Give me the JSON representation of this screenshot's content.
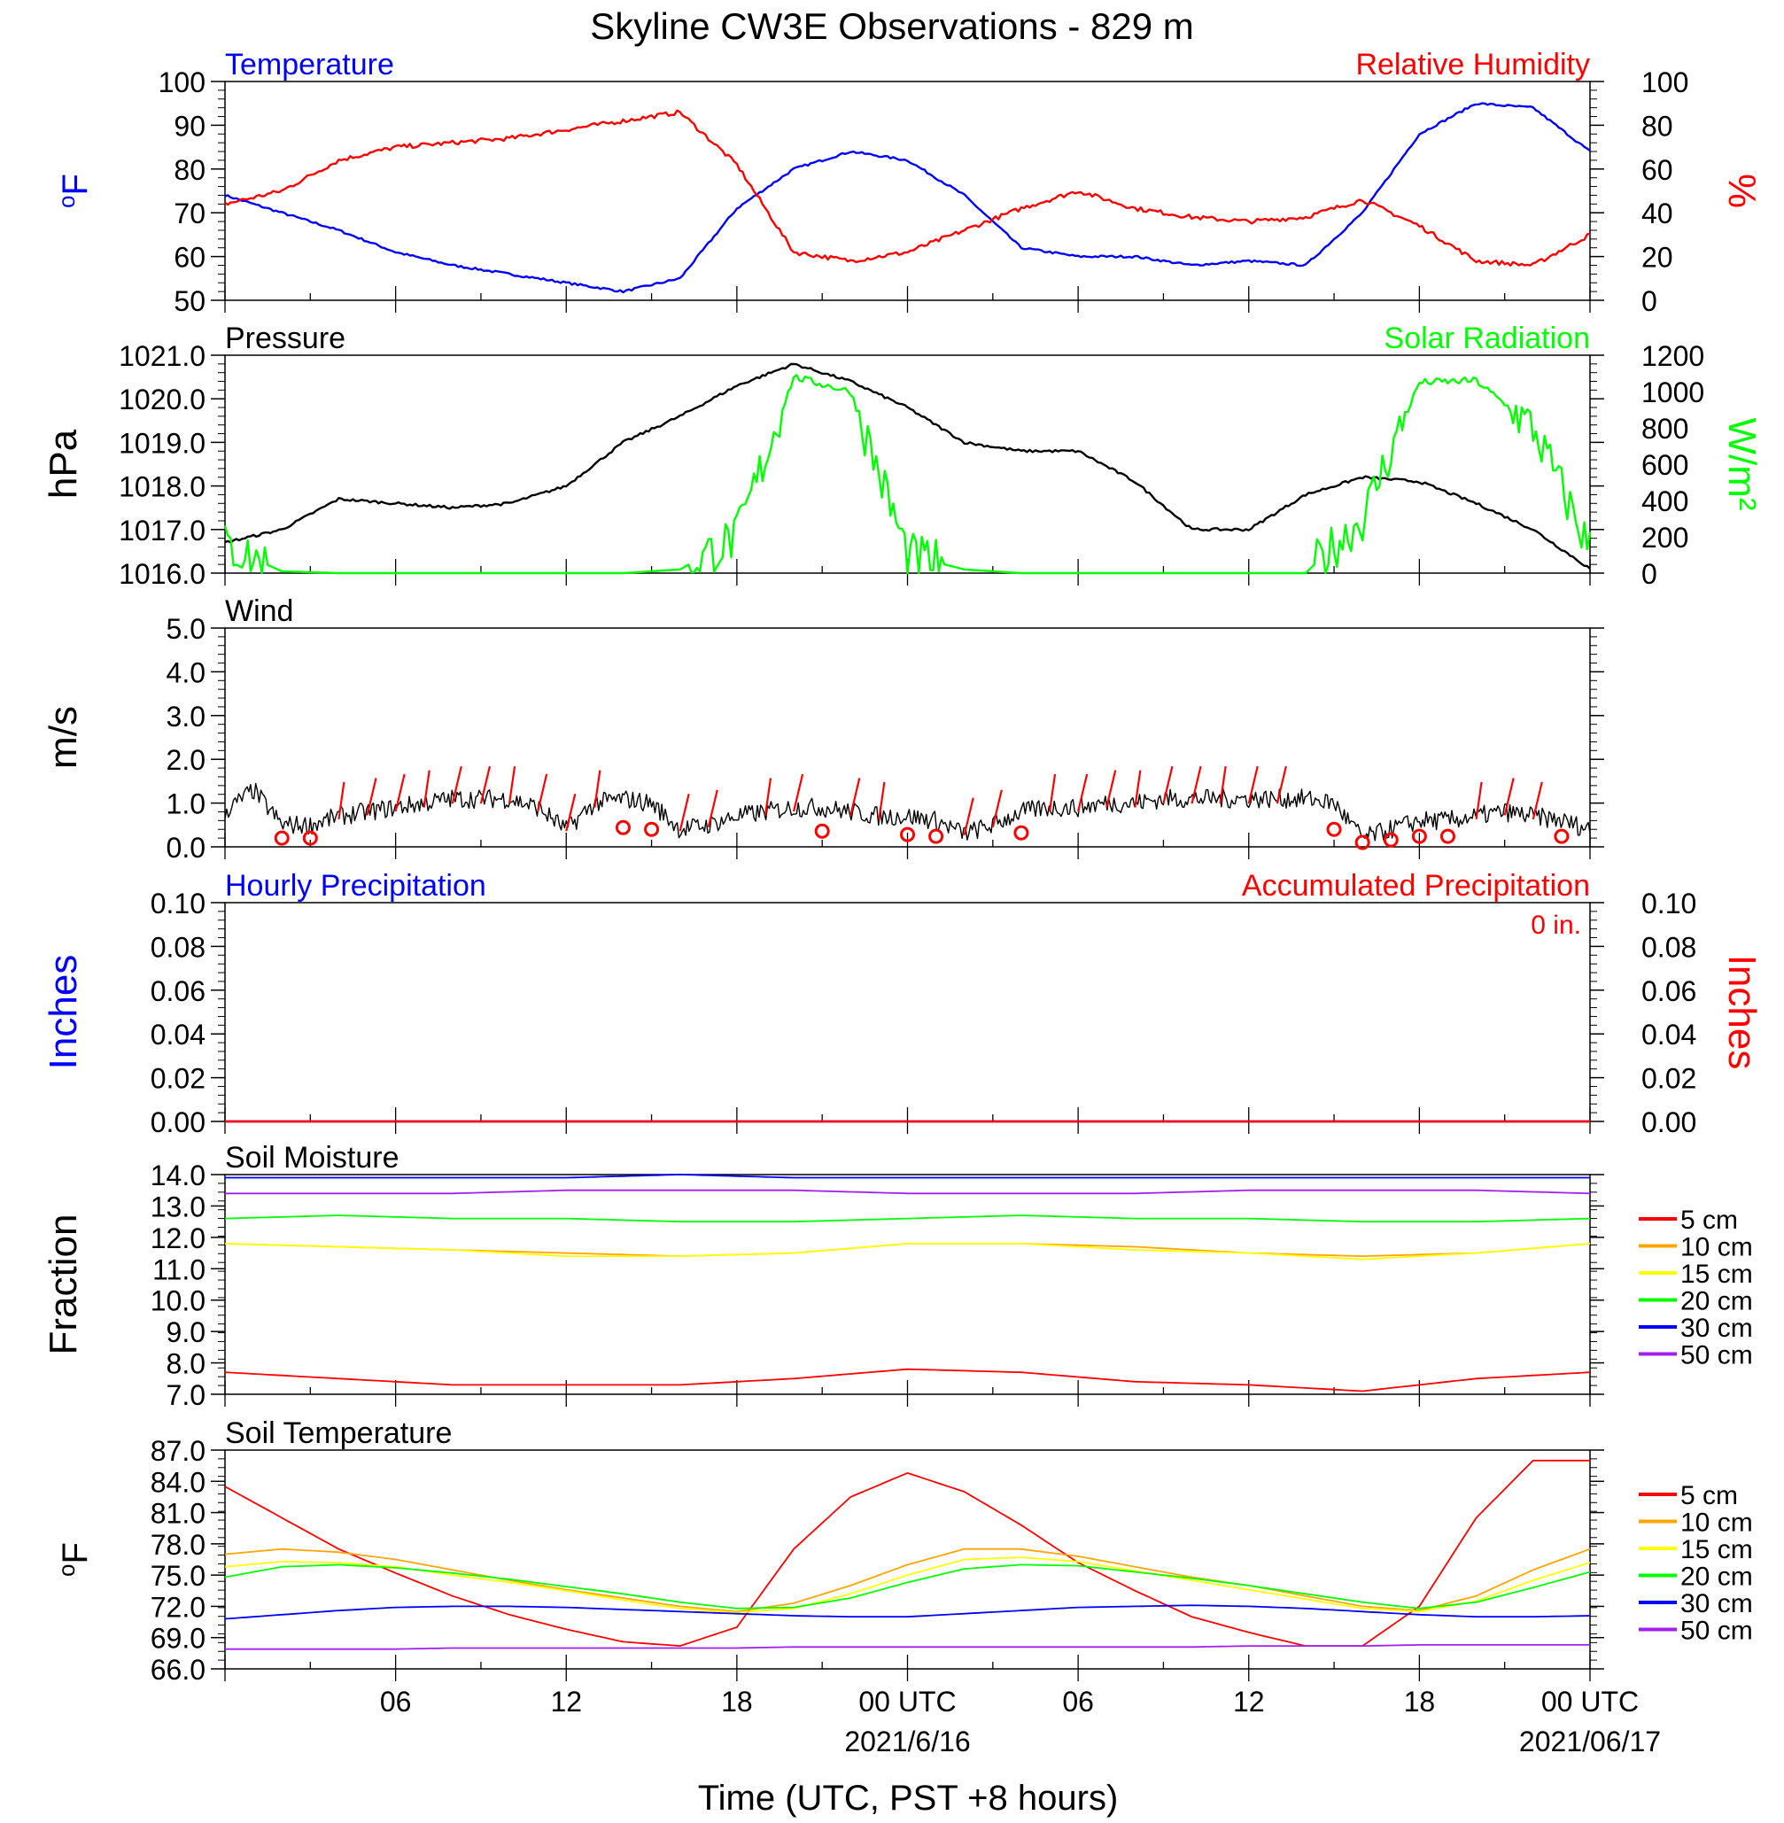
{
  "title": "Skyline CW3E Observations - 829 m",
  "xlabel": "Time (UTC, PST +8 hours)",
  "x_ticks": [
    "06",
    "12",
    "18",
    "00 UTC",
    "06",
    "12",
    "18",
    "00 UTC"
  ],
  "x_dates": [
    "2021/6/16",
    "2021/06/17"
  ],
  "colors": {
    "temperature": "#0000ff",
    "humidity": "#ff0000",
    "pressure": "#000000",
    "solar": "#00ff00",
    "5cm": "#ff0000",
    "10cm": "#ffa500",
    "15cm": "#ffff00",
    "20cm": "#00ff00",
    "30cm": "#0000ff",
    "50cm": "#a020f0"
  },
  "chart_data": [
    {
      "type": "line",
      "panel": "temperature-humidity",
      "left_title": "Temperature",
      "right_title": "Relative Humidity",
      "ylabel_left": "oF",
      "ylabel_right": "%",
      "ylim_left": [
        50,
        100
      ],
      "ylim_right": [
        0,
        100
      ],
      "yticks_left": [
        "50",
        "60",
        "70",
        "80",
        "90",
        "100"
      ],
      "yticks_right": [
        "0",
        "20",
        "40",
        "60",
        "80",
        "100"
      ],
      "x_hours": [
        0,
        2,
        4,
        6,
        8,
        10,
        12,
        14,
        16,
        18,
        20,
        22,
        24,
        26,
        28,
        30,
        32,
        34,
        36,
        38,
        40,
        42,
        44,
        46,
        48
      ],
      "series": [
        {
          "name": "Temperature",
          "axis": "left",
          "values": [
            74,
            70,
            66,
            61,
            58,
            56,
            54,
            52,
            55,
            71,
            80,
            84,
            82,
            74,
            62,
            60,
            60,
            58,
            59,
            58,
            70,
            88,
            95,
            94,
            84
          ]
        },
        {
          "name": "Relative Humidity",
          "axis": "right",
          "values": [
            44,
            50,
            64,
            70,
            72,
            74,
            78,
            82,
            86,
            62,
            22,
            18,
            22,
            32,
            42,
            50,
            42,
            38,
            36,
            38,
            46,
            34,
            18,
            16,
            30
          ]
        }
      ]
    },
    {
      "type": "line",
      "panel": "pressure-solar",
      "left_title": "Pressure",
      "right_title": "Solar Radiation",
      "ylabel_left": "hPa",
      "ylabel_right": "W/m²",
      "ylim_left": [
        1016.0,
        1021.0
      ],
      "ylim_right": [
        0,
        1200
      ],
      "yticks_left": [
        "1016.0",
        "1017.0",
        "1018.0",
        "1019.0",
        "1020.0",
        "1021.0"
      ],
      "yticks_right": [
        "0",
        "200",
        "400",
        "600",
        "800",
        "1000",
        "1200"
      ],
      "x_hours": [
        0,
        2,
        4,
        6,
        8,
        10,
        12,
        14,
        16,
        18,
        20,
        22,
        24,
        26,
        28,
        30,
        32,
        34,
        36,
        38,
        40,
        42,
        44,
        46,
        48
      ],
      "series": [
        {
          "name": "Pressure",
          "axis": "left",
          "values": [
            1016.7,
            1017.0,
            1017.7,
            1017.6,
            1017.5,
            1017.6,
            1018.0,
            1019.0,
            1019.6,
            1020.3,
            1020.8,
            1020.4,
            1019.8,
            1019.0,
            1018.8,
            1018.8,
            1018.1,
            1017.0,
            1017.0,
            1017.8,
            1018.2,
            1018.1,
            1017.6,
            1017.0,
            1016.1
          ]
        },
        {
          "name": "Solar Radiation",
          "axis": "right",
          "values": [
            150,
            10,
            0,
            0,
            0,
            0,
            0,
            0,
            20,
            200,
            1080,
            1000,
            100,
            20,
            0,
            0,
            0,
            0,
            0,
            0,
            300,
            1050,
            1060,
            800,
            130
          ]
        }
      ]
    },
    {
      "type": "line",
      "panel": "wind",
      "left_title": "Wind",
      "ylabel_left": "m/s",
      "ylim_left": [
        0.0,
        5.0
      ],
      "yticks_left": [
        "0.0",
        "1.0",
        "2.0",
        "3.0",
        "4.0",
        "5.0"
      ],
      "x_hours": [
        0,
        1,
        2,
        3,
        4,
        5,
        6,
        7,
        8,
        9,
        10,
        11,
        12,
        13,
        14,
        15,
        16,
        17,
        18,
        19,
        20,
        21,
        22,
        23,
        24,
        25,
        26,
        27,
        28,
        29,
        30,
        31,
        32,
        33,
        34,
        35,
        36,
        37,
        38,
        39,
        40,
        41,
        42,
        43,
        44,
        45,
        46,
        47,
        48
      ],
      "series": [
        {
          "name": "Wind Speed",
          "values": [
            0.8,
            1.3,
            0.5,
            0.5,
            0.7,
            0.8,
            0.9,
            1.0,
            1.1,
            1.1,
            1.1,
            0.9,
            0.4,
            1.0,
            1.1,
            1.0,
            0.4,
            0.5,
            0.7,
            0.8,
            0.9,
            0.9,
            0.8,
            0.7,
            0.7,
            0.6,
            0.3,
            0.5,
            0.8,
            0.9,
            0.9,
            1.0,
            1.0,
            1.1,
            1.1,
            1.1,
            1.1,
            1.1,
            1.1,
            1.0,
            0.2,
            0.4,
            0.6,
            0.6,
            0.7,
            0.8,
            0.7,
            0.6,
            0.4
          ]
        }
      ],
      "calm_hours": [
        2,
        3,
        14,
        15,
        21,
        24,
        25,
        28,
        39,
        40,
        41,
        42,
        43,
        47
      ],
      "barb_hours": [
        4,
        5,
        6,
        7,
        8,
        9,
        10,
        11,
        12,
        13,
        16,
        17,
        19,
        20,
        22,
        23,
        26,
        27,
        29,
        30,
        31,
        32,
        33,
        34,
        35,
        36,
        37,
        44,
        45,
        46
      ]
    },
    {
      "type": "line",
      "panel": "precipitation",
      "left_title": "Hourly Precipitation",
      "right_title": "Accumulated Precipitation",
      "annotation": "0 in.",
      "ylabel_left": "Inches",
      "ylabel_right": "Inches",
      "ylim_left": [
        0.0,
        0.1
      ],
      "ylim_right": [
        0.0,
        0.1
      ],
      "yticks_left": [
        "0.00",
        "0.02",
        "0.04",
        "0.06",
        "0.08",
        "0.10"
      ],
      "yticks_right": [
        "0.00",
        "0.02",
        "0.04",
        "0.06",
        "0.08",
        "0.10"
      ],
      "x_hours": [
        0,
        48
      ],
      "series": [
        {
          "name": "Hourly Precipitation",
          "axis": "left",
          "values": [
            0,
            0
          ]
        },
        {
          "name": "Accumulated Precipitation",
          "axis": "right",
          "values": [
            0,
            0
          ]
        }
      ]
    },
    {
      "type": "line",
      "panel": "soil-moisture",
      "left_title": "Soil Moisture",
      "ylabel_left": "Fraction",
      "ylim_left": [
        7.0,
        14.0
      ],
      "yticks_left": [
        "7.0",
        "8.0",
        "9.0",
        "10.0",
        "11.0",
        "12.0",
        "13.0",
        "14.0"
      ],
      "legend": [
        "5 cm",
        "10 cm",
        "15 cm",
        "20 cm",
        "30 cm",
        "50 cm"
      ],
      "x_hours": [
        0,
        4,
        8,
        12,
        16,
        20,
        24,
        28,
        32,
        36,
        40,
        44,
        48
      ],
      "series": [
        {
          "name": "5 cm",
          "values": [
            7.7,
            7.5,
            7.3,
            7.3,
            7.3,
            7.5,
            7.8,
            7.7,
            7.4,
            7.3,
            7.1,
            7.5,
            7.7
          ]
        },
        {
          "name": "10 cm",
          "values": [
            11.8,
            11.7,
            11.6,
            11.5,
            11.4,
            11.5,
            11.8,
            11.8,
            11.7,
            11.5,
            11.4,
            11.5,
            11.8
          ]
        },
        {
          "name": "15 cm",
          "values": [
            11.8,
            11.7,
            11.6,
            11.4,
            11.4,
            11.5,
            11.8,
            11.8,
            11.6,
            11.5,
            11.3,
            11.5,
            11.8
          ]
        },
        {
          "name": "20 cm",
          "values": [
            12.6,
            12.7,
            12.6,
            12.6,
            12.5,
            12.5,
            12.6,
            12.7,
            12.6,
            12.6,
            12.5,
            12.5,
            12.6
          ]
        },
        {
          "name": "30 cm",
          "values": [
            13.9,
            13.9,
            13.9,
            13.9,
            14.0,
            13.9,
            13.9,
            13.9,
            13.9,
            13.9,
            13.9,
            13.9,
            13.9
          ]
        },
        {
          "name": "50 cm",
          "values": [
            13.4,
            13.4,
            13.4,
            13.5,
            13.5,
            13.5,
            13.4,
            13.4,
            13.4,
            13.5,
            13.5,
            13.5,
            13.4
          ]
        }
      ]
    },
    {
      "type": "line",
      "panel": "soil-temperature",
      "left_title": "Soil Temperature",
      "ylabel_left": "oF",
      "ylim_left": [
        66.0,
        87.0
      ],
      "yticks_left": [
        "66.0",
        "69.0",
        "72.0",
        "75.0",
        "78.0",
        "81.0",
        "84.0",
        "87.0"
      ],
      "legend": [
        "5 cm",
        "10 cm",
        "15 cm",
        "20 cm",
        "30 cm",
        "50 cm"
      ],
      "x_hours": [
        0,
        2,
        4,
        6,
        8,
        10,
        12,
        14,
        16,
        18,
        20,
        22,
        24,
        26,
        28,
        30,
        32,
        34,
        36,
        38,
        40,
        42,
        44,
        46,
        48
      ],
      "series": [
        {
          "name": "5 cm",
          "values": [
            83.5,
            80.5,
            77.5,
            75.2,
            73.0,
            71.2,
            69.8,
            68.6,
            68.2,
            70.0,
            77.5,
            82.5,
            84.8,
            83.0,
            79.8,
            76.2,
            73.5,
            71.0,
            69.5,
            68.2,
            68.2,
            72.0,
            80.5,
            86.0,
            86.0
          ]
        },
        {
          "name": "10 cm",
          "values": [
            77.0,
            77.5,
            77.2,
            76.5,
            75.5,
            74.5,
            73.6,
            72.8,
            72.0,
            71.5,
            72.3,
            74.0,
            76.0,
            77.5,
            77.5,
            76.8,
            75.8,
            74.8,
            74.0,
            73.0,
            72.0,
            71.6,
            73.0,
            75.5,
            77.5
          ]
        },
        {
          "name": "15 cm",
          "values": [
            75.8,
            76.3,
            76.2,
            75.8,
            75.0,
            74.3,
            73.5,
            72.6,
            71.8,
            71.4,
            71.8,
            73.2,
            75.0,
            76.5,
            76.7,
            76.3,
            75.4,
            74.5,
            73.6,
            72.7,
            71.8,
            71.5,
            72.5,
            74.5,
            76.2
          ]
        },
        {
          "name": "20 cm",
          "values": [
            74.8,
            75.8,
            76.0,
            75.7,
            75.2,
            74.6,
            73.9,
            73.2,
            72.4,
            71.8,
            71.9,
            72.8,
            74.3,
            75.6,
            76.0,
            75.9,
            75.3,
            74.7,
            74.0,
            73.2,
            72.4,
            71.8,
            72.4,
            73.8,
            75.3
          ]
        },
        {
          "name": "30 cm",
          "values": [
            70.8,
            71.2,
            71.6,
            71.9,
            72.0,
            72.0,
            71.9,
            71.7,
            71.5,
            71.3,
            71.1,
            71.0,
            71.0,
            71.3,
            71.6,
            71.9,
            72.0,
            72.1,
            72.0,
            71.8,
            71.5,
            71.2,
            71.0,
            71.0,
            71.1
          ]
        },
        {
          "name": "50 cm",
          "values": [
            67.9,
            67.9,
            67.9,
            67.9,
            68.0,
            68.0,
            68.0,
            68.0,
            68.0,
            68.0,
            68.1,
            68.1,
            68.1,
            68.1,
            68.1,
            68.1,
            68.1,
            68.1,
            68.2,
            68.2,
            68.2,
            68.3,
            68.3,
            68.3,
            68.3
          ]
        }
      ]
    }
  ]
}
